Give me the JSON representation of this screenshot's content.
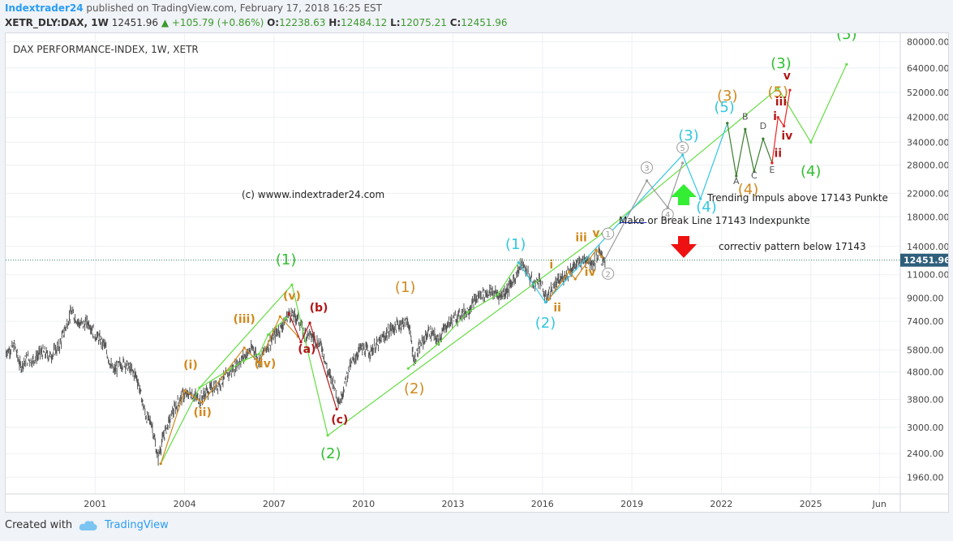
{
  "header": {
    "author": "Indextrader24",
    "published": " published on TradingView.com, February 17, 2018 16:25 EST",
    "symbol": "XETR_DLY:DAX, 1W",
    "last": "12451.96",
    "change": "+105.79 (+0.86%)",
    "o_label": "O:",
    "o": "12238.63",
    "h_label": "H:",
    "h": "12484.12",
    "l_label": "L:",
    "l": "12075.21",
    "c_label": "C:",
    "c": "12451.96"
  },
  "footer": {
    "created": "Created with",
    "brand": "TradingView"
  },
  "colors": {
    "green": "#2fbf2f",
    "bright_green": "#66ee44",
    "cyan": "#33c7e0",
    "orange": "#d08a1e",
    "darkred": "#b01818",
    "grey": "#9a9a9a",
    "price": "#555555",
    "up": "#33ee33",
    "down": "#ee1111",
    "line": "#2233dd"
  },
  "chart_data": {
    "type": "line",
    "title": "DAX PERFORMANCE-INDEX, 1W, XETR",
    "y_scale": "log",
    "ylim": [
      1700,
      86000
    ],
    "y_ticks": [
      80000,
      64000,
      52000,
      42000,
      34000,
      28000,
      22000,
      18000,
      14000,
      11000,
      9000,
      7400,
      5800,
      4800,
      3800,
      3000,
      2400,
      1960
    ],
    "y_tick_labels": [
      "80000.00",
      "64000.00",
      "52000.00",
      "42000.00",
      "34000.00",
      "28000.00",
      "22000.00",
      "18000.00",
      "14000.00",
      "11000.00",
      "9000.00",
      "7400.00",
      "5800.00",
      "4800.00",
      "3800.00",
      "3000.00",
      "2400.00",
      "1960.00"
    ],
    "xlim": [
      1998.0,
      2028.0
    ],
    "x_ticks": [
      2001,
      2004,
      2007,
      2010,
      2013,
      2016,
      2019,
      2022,
      2025,
      2027.3
    ],
    "x_tick_labels": [
      "2001",
      "2004",
      "2007",
      "2010",
      "2013",
      "2016",
      "2019",
      "2022",
      "2025",
      "Jun"
    ],
    "last_price": 12451.96,
    "last_price_label": "12451.96",
    "price_series": [
      [
        1998.0,
        5700
      ],
      [
        1998.3,
        6000
      ],
      [
        1998.5,
        5000
      ],
      [
        1998.7,
        5400
      ],
      [
        1998.9,
        5300
      ],
      [
        1999.2,
        5700
      ],
      [
        1999.5,
        5500
      ],
      [
        1999.8,
        6000
      ],
      [
        2000.0,
        7000
      ],
      [
        2000.2,
        8000
      ],
      [
        2000.5,
        7200
      ],
      [
        2000.8,
        7300
      ],
      [
        2001.0,
        6600
      ],
      [
        2001.3,
        6100
      ],
      [
        2001.6,
        4800
      ],
      [
        2001.8,
        5100
      ],
      [
        2002.0,
        5200
      ],
      [
        2002.4,
        4600
      ],
      [
        2002.7,
        3300
      ],
      [
        2002.9,
        3100
      ],
      [
        2003.1,
        2300
      ],
      [
        2003.3,
        2800
      ],
      [
        2003.6,
        3400
      ],
      [
        2003.9,
        3900
      ],
      [
        2004.2,
        4000
      ],
      [
        2004.5,
        3800
      ],
      [
        2004.8,
        4100
      ],
      [
        2005.2,
        4400
      ],
      [
        2005.6,
        4900
      ],
      [
        2006.0,
        5500
      ],
      [
        2006.3,
        5900
      ],
      [
        2006.5,
        5300
      ],
      [
        2006.9,
        6300
      ],
      [
        2007.3,
        7200
      ],
      [
        2007.5,
        7900
      ],
      [
        2007.8,
        7600
      ],
      [
        2008.0,
        6700
      ],
      [
        2008.3,
        6500
      ],
      [
        2008.6,
        6000
      ],
      [
        2008.8,
        4800
      ],
      [
        2009.0,
        4400
      ],
      [
        2009.2,
        3700
      ],
      [
        2009.5,
        4900
      ],
      [
        2009.9,
        5900
      ],
      [
        2010.2,
        5700
      ],
      [
        2010.5,
        6100
      ],
      [
        2010.9,
        6900
      ],
      [
        2011.3,
        7300
      ],
      [
        2011.5,
        7400
      ],
      [
        2011.7,
        5300
      ],
      [
        2011.9,
        6000
      ],
      [
        2012.2,
        6800
      ],
      [
        2012.5,
        6300
      ],
      [
        2012.8,
        7200
      ],
      [
        2013.2,
        7800
      ],
      [
        2013.5,
        8100
      ],
      [
        2013.9,
        9300
      ],
      [
        2014.3,
        9500
      ],
      [
        2014.6,
        9200
      ],
      [
        2014.9,
        9900
      ],
      [
        2015.3,
        12000
      ],
      [
        2015.5,
        11300
      ],
      [
        2015.7,
        10000
      ],
      [
        2015.9,
        10700
      ],
      [
        2016.1,
        9000
      ],
      [
        2016.4,
        10000
      ],
      [
        2016.6,
        10500
      ],
      [
        2016.9,
        11400
      ],
      [
        2017.2,
        12100
      ],
      [
        2017.5,
        12700
      ],
      [
        2017.7,
        12100
      ],
      [
        2017.9,
        13200
      ],
      [
        2018.1,
        12450
      ]
    ],
    "series": [
      {
        "name": "",
        "color": "#66dd44",
        "points": [
          [
            2003.2,
            2200
          ],
          [
            2004.5,
            4200
          ],
          [
            2007.6,
            10100
          ],
          [
            2008.8,
            2800
          ],
          [
            2018.0,
            15600
          ],
          [
            2023.9,
            53800
          ],
          [
            2025.0,
            34000
          ],
          [
            2026.2,
            66000
          ]
        ]
      },
      {
        "name": "",
        "color": "#66dd44",
        "points": [
          [
            2004.5,
            4200
          ],
          [
            2005.5,
            4900
          ],
          [
            2006.0,
            5300
          ],
          [
            2006.5,
            5600
          ],
          [
            2006.8,
            6600
          ],
          [
            2007.4,
            7600
          ]
        ]
      },
      {
        "name": "",
        "color": "#66dd44",
        "points": [
          [
            2011.5,
            4950
          ],
          [
            2012.5,
            6100
          ],
          [
            2013.5,
            8000
          ],
          [
            2014.5,
            9300
          ],
          [
            2015.2,
            12200
          ]
        ]
      },
      {
        "name": "",
        "color": "#d08a1e",
        "points": [
          [
            2003.2,
            2200
          ],
          [
            2004.0,
            4100
          ],
          [
            2004.6,
            3700
          ],
          [
            2006.0,
            5900
          ],
          [
            2006.5,
            5200
          ],
          [
            2007.2,
            7700
          ],
          [
            2007.8,
            6500
          ]
        ]
      },
      {
        "name": "",
        "color": "#b01818",
        "points": [
          [
            2007.5,
            7900
          ],
          [
            2007.9,
            6200
          ],
          [
            2008.2,
            7300
          ],
          [
            2009.1,
            3500
          ]
        ]
      },
      {
        "name": "",
        "color": "#33c7e0",
        "points": [
          [
            2015.2,
            12200
          ],
          [
            2016.1,
            8700
          ],
          [
            2020.7,
            30500
          ],
          [
            2021.3,
            21000
          ],
          [
            2022.2,
            40000
          ]
        ]
      },
      {
        "name": "",
        "color": "#d08a1e",
        "points": [
          [
            2016.2,
            8900
          ],
          [
            2016.9,
            11300
          ],
          [
            2017.1,
            10600
          ],
          [
            2017.8,
            13600
          ],
          [
            2018.0,
            12800
          ]
        ]
      },
      {
        "name": "",
        "color": "#9a9a9a",
        "points": [
          [
            2018.0,
            12000
          ],
          [
            2019.5,
            24500
          ],
          [
            2020.2,
            19500
          ],
          [
            2020.7,
            28500
          ]
        ]
      },
      {
        "name": "",
        "color": "#3c7c2e",
        "points": [
          [
            2022.2,
            40000
          ],
          [
            2022.5,
            25500
          ],
          [
            2022.8,
            38000
          ],
          [
            2023.1,
            26500
          ],
          [
            2023.4,
            35000
          ],
          [
            2023.7,
            28500
          ]
        ]
      },
      {
        "name": "",
        "color": "#ee2222",
        "points": [
          [
            2023.7,
            28500
          ],
          [
            2023.9,
            42000
          ],
          [
            2024.1,
            39000
          ],
          [
            2024.3,
            53000
          ]
        ]
      }
    ],
    "make_or_break_line": {
      "level": 17143,
      "x_range": [
        2018.6,
        2019.5
      ]
    },
    "annotations": {
      "title": "DAX PERFORMANCE-INDEX, 1W, XETR",
      "copyright": "(c) wwww.indextrader24.com",
      "trend_up": "Trending Impuls above 17143 Punkte",
      "make_break": "Make or Break Line 17143 Indexpunkte",
      "trend_down": "correctiv pattern below 17143"
    },
    "wave_labels": [
      {
        "t": "(1)",
        "x": 2007.4,
        "y": 12000,
        "c": "#2fbf2f",
        "s": 18
      },
      {
        "t": "(2)",
        "x": 2008.9,
        "y": 2300,
        "c": "#2fbf2f",
        "s": 18
      },
      {
        "t": "(3)",
        "x": 2024.0,
        "y": 64000,
        "c": "#2fbf2f",
        "s": 18
      },
      {
        "t": "(4)",
        "x": 2025.0,
        "y": 25500,
        "c": "#2fbf2f",
        "s": 18
      },
      {
        "t": "(5)",
        "x": 2026.2,
        "y": 82000,
        "c": "#2fbf2f",
        "s": 18
      },
      {
        "t": "(1)",
        "x": 2011.4,
        "y": 9500,
        "c": "#d08a1e",
        "s": 18
      },
      {
        "t": "(2)",
        "x": 2011.7,
        "y": 4000,
        "c": "#d08a1e",
        "s": 18
      },
      {
        "t": "(3)",
        "x": 2022.2,
        "y": 48500,
        "c": "#d08a1e",
        "s": 18
      },
      {
        "t": "(4)",
        "x": 2022.9,
        "y": 21800,
        "c": "#d08a1e",
        "s": 18
      },
      {
        "t": "(5)",
        "x": 2023.9,
        "y": 50000,
        "c": "#d08a1e",
        "s": 18
      },
      {
        "t": "(1)",
        "x": 2015.1,
        "y": 13700,
        "c": "#33c7e0",
        "s": 18
      },
      {
        "t": "(2)",
        "x": 2016.1,
        "y": 7000,
        "c": "#33c7e0",
        "s": 18
      },
      {
        "t": "(3)",
        "x": 2020.9,
        "y": 34500,
        "c": "#33c7e0",
        "s": 18
      },
      {
        "t": "(4)",
        "x": 2021.5,
        "y": 18800,
        "c": "#33c7e0",
        "s": 18
      },
      {
        "t": "(5)",
        "x": 2022.1,
        "y": 44000,
        "c": "#33c7e0",
        "s": 18
      },
      {
        "t": "(i)",
        "x": 2004.2,
        "y": 4950,
        "c": "#d08a1e",
        "s": 14
      },
      {
        "t": "(ii)",
        "x": 2004.6,
        "y": 3300,
        "c": "#d08a1e",
        "s": 14
      },
      {
        "t": "(iii)",
        "x": 2006.0,
        "y": 7300,
        "c": "#d08a1e",
        "s": 14
      },
      {
        "t": "(iv)",
        "x": 2006.7,
        "y": 5000,
        "c": "#d08a1e",
        "s": 14
      },
      {
        "t": "(v)",
        "x": 2007.6,
        "y": 8900,
        "c": "#d08a1e",
        "s": 14
      },
      {
        "t": "(a)",
        "x": 2008.1,
        "y": 5650,
        "c": "#b01818",
        "s": 14
      },
      {
        "t": "(b)",
        "x": 2008.5,
        "y": 8050,
        "c": "#b01818",
        "s": 14
      },
      {
        "t": "(c)",
        "x": 2009.2,
        "y": 3100,
        "c": "#b01818",
        "s": 14
      },
      {
        "t": "i",
        "x": 2016.3,
        "y": 11600,
        "c": "#d08a1e",
        "s": 14
      },
      {
        "t": "ii",
        "x": 2016.5,
        "y": 8050,
        "c": "#d08a1e",
        "s": 14
      },
      {
        "t": "iii",
        "x": 2017.3,
        "y": 14600,
        "c": "#d08a1e",
        "s": 14
      },
      {
        "t": "iv",
        "x": 2017.6,
        "y": 10900,
        "c": "#d08a1e",
        "s": 14
      },
      {
        "t": "v",
        "x": 2017.8,
        "y": 15200,
        "c": "#d08a1e",
        "s": 14
      },
      {
        "t": "i",
        "x": 2023.8,
        "y": 41000,
        "c": "#b01818",
        "s": 14
      },
      {
        "t": "ii",
        "x": 2023.9,
        "y": 30000,
        "c": "#b01818",
        "s": 14
      },
      {
        "t": "iii",
        "x": 2024.0,
        "y": 46500,
        "c": "#b01818",
        "s": 14
      },
      {
        "t": "iv",
        "x": 2024.2,
        "y": 34800,
        "c": "#b01818",
        "s": 14
      },
      {
        "t": "v",
        "x": 2024.2,
        "y": 58000,
        "c": "#b01818",
        "s": 14
      },
      {
        "t": "A",
        "x": 2022.5,
        "y": 23800,
        "c": "#555555",
        "s": 11
      },
      {
        "t": "B",
        "x": 2022.8,
        "y": 41200,
        "c": "#555555",
        "s": 11
      },
      {
        "t": "C",
        "x": 2023.1,
        "y": 25000,
        "c": "#555555",
        "s": 11
      },
      {
        "t": "D",
        "x": 2023.4,
        "y": 38000,
        "c": "#555555",
        "s": 11
      },
      {
        "t": "E",
        "x": 2023.7,
        "y": 26200,
        "c": "#555555",
        "s": 11
      }
    ],
    "circle_labels": [
      {
        "t": "1",
        "x": 2018.2,
        "y": 15600
      },
      {
        "t": "2",
        "x": 2018.2,
        "y": 11100
      },
      {
        "t": "3",
        "x": 2019.5,
        "y": 27400
      },
      {
        "t": "4",
        "x": 2020.2,
        "y": 18400
      },
      {
        "t": "5",
        "x": 2020.7,
        "y": 32500
      }
    ]
  }
}
